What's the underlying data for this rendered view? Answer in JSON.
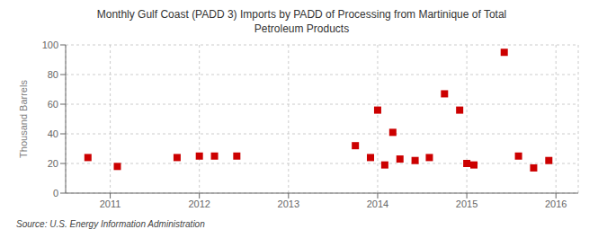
{
  "chart_data": {
    "type": "scatter",
    "title": "Monthly Gulf Coast (PADD 3) Imports by PADD of Processing from Martinique of Total\nPetroleum Products",
    "ylabel": "Thousand Barrels",
    "source": "Source: U.S. Energy Information Administration",
    "color": "#cc0000",
    "marker": "square",
    "grid": true,
    "xlim": [
      2010.5,
      2016.25
    ],
    "ylim": [
      0,
      100
    ],
    "xticks": [
      2011,
      2012,
      2013,
      2014,
      2015,
      2016
    ],
    "yticks": [
      0,
      20,
      40,
      60,
      80,
      100
    ],
    "x": [
      2010.75,
      2011.08,
      2011.75,
      2012.0,
      2012.17,
      2012.42,
      2013.75,
      2013.92,
      2014.0,
      2014.08,
      2014.17,
      2014.25,
      2014.42,
      2014.58,
      2014.75,
      2014.92,
      2015.0,
      2015.08,
      2015.42,
      2015.58,
      2015.75,
      2015.92
    ],
    "values": [
      24,
      18,
      24,
      25,
      25,
      25,
      32,
      24,
      56,
      19,
      41,
      23,
      22,
      24,
      67,
      56,
      20,
      19,
      95,
      25,
      17,
      22
    ]
  }
}
